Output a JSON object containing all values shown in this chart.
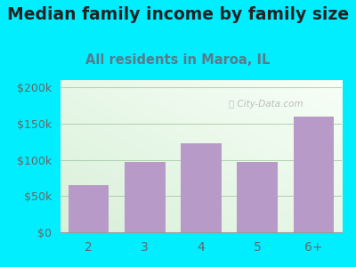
{
  "title": "Median family income by family size",
  "subtitle": "All residents in Maroa, IL",
  "categories": [
    "2",
    "3",
    "4",
    "5",
    "6+"
  ],
  "values": [
    65000,
    97500,
    122500,
    97500,
    160000
  ],
  "bar_color": "#b89ac8",
  "background_outer": "#00eeff",
  "title_color": "#222222",
  "subtitle_color": "#5a7a8a",
  "tick_color": "#666666",
  "yticks": [
    0,
    50000,
    100000,
    150000,
    200000
  ],
  "ytick_labels": [
    "$0",
    "$50k",
    "$100k",
    "$150k",
    "$200k"
  ],
  "ylim": [
    0,
    210000
  ],
  "watermark": "City-Data.com",
  "title_fontsize": 13.5,
  "subtitle_fontsize": 10.5
}
